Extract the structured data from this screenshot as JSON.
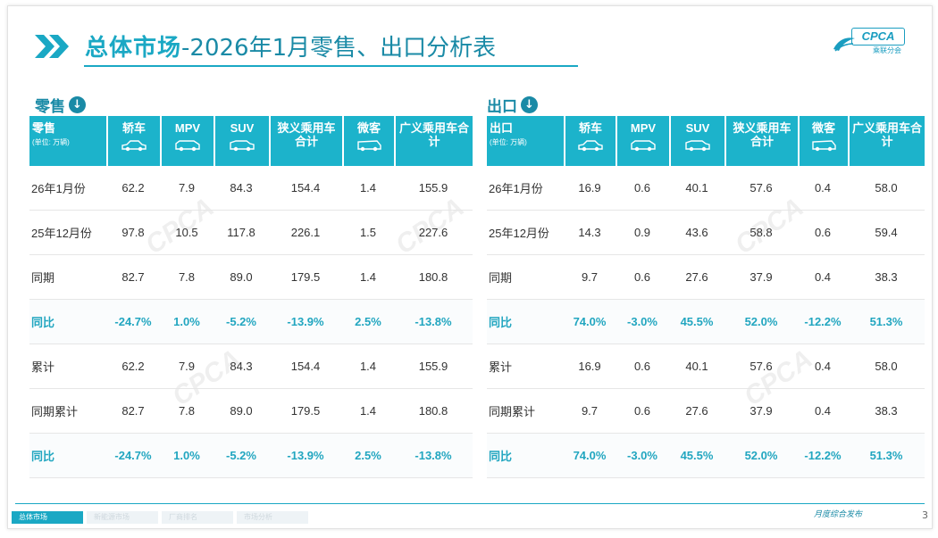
{
  "title": {
    "bold": "总体市场",
    "rest": "-2026年1月零售、出口分析表"
  },
  "logo": {
    "text": "CPCA",
    "sub": "乘联分会"
  },
  "retail": {
    "heading": "零售",
    "header": {
      "label": "零售",
      "unit": "(单位: 万辆)",
      "cols": [
        "轿车",
        "MPV",
        "SUV",
        "狭义乘用车合计",
        "微客",
        "广义乘用车合计"
      ]
    },
    "rows": [
      {
        "label": "26年1月份",
        "values": [
          "62.2",
          "7.9",
          "84.3",
          "154.4",
          "1.4",
          "155.9"
        ]
      },
      {
        "label": "25年12月份",
        "values": [
          "97.8",
          "10.5",
          "117.8",
          "226.1",
          "1.5",
          "227.6"
        ]
      },
      {
        "label": "同期",
        "values": [
          "82.7",
          "7.8",
          "89.0",
          "179.5",
          "1.4",
          "180.8"
        ]
      },
      {
        "label": "同比",
        "values": [
          "-24.7%",
          "1.0%",
          "-5.2%",
          "-13.9%",
          "2.5%",
          "-13.8%"
        ],
        "yoy": true
      },
      {
        "label": "累计",
        "values": [
          "62.2",
          "7.9",
          "84.3",
          "154.4",
          "1.4",
          "155.9"
        ]
      },
      {
        "label": "同期累计",
        "values": [
          "82.7",
          "7.8",
          "89.0",
          "179.5",
          "1.4",
          "180.8"
        ]
      },
      {
        "label": "同比",
        "values": [
          "-24.7%",
          "1.0%",
          "-5.2%",
          "-13.9%",
          "2.5%",
          "-13.8%"
        ],
        "yoy": true
      }
    ]
  },
  "export": {
    "heading": "出口",
    "header": {
      "label": "出口",
      "unit": "(单位: 万辆)",
      "cols": [
        "轿车",
        "MPV",
        "SUV",
        "狭义乘用车合计",
        "微客",
        "广义乘用车合计"
      ]
    },
    "rows": [
      {
        "label": "26年1月份",
        "values": [
          "16.9",
          "0.6",
          "40.1",
          "57.6",
          "0.4",
          "58.0"
        ]
      },
      {
        "label": "25年12月份",
        "values": [
          "14.3",
          "0.9",
          "43.6",
          "58.8",
          "0.6",
          "59.4"
        ]
      },
      {
        "label": "同期",
        "values": [
          "9.7",
          "0.6",
          "27.6",
          "37.9",
          "0.4",
          "38.3"
        ]
      },
      {
        "label": "同比",
        "values": [
          "74.0%",
          "-3.0%",
          "45.5%",
          "52.0%",
          "-12.2%",
          "51.3%"
        ],
        "yoy": true
      },
      {
        "label": "累计",
        "values": [
          "16.9",
          "0.6",
          "40.1",
          "57.6",
          "0.4",
          "58.0"
        ]
      },
      {
        "label": "同期累计",
        "values": [
          "9.7",
          "0.6",
          "27.6",
          "37.9",
          "0.4",
          "38.3"
        ]
      },
      {
        "label": "同比",
        "values": [
          "74.0%",
          "-3.0%",
          "45.5%",
          "52.0%",
          "-12.2%",
          "51.3%"
        ],
        "yoy": true
      }
    ]
  },
  "footer": {
    "tag": "月度综合发布",
    "page": "3",
    "tabs": [
      {
        "label": "总体市场",
        "active": true
      },
      {
        "label": "新能源市场",
        "active": false
      },
      {
        "label": "厂商排名",
        "active": false
      },
      {
        "label": "市场分析",
        "active": false
      }
    ]
  },
  "colors": {
    "accent": "#1aa8c4",
    "header_bg": "#1cb3cb",
    "yoy_text": "#22a6c0"
  }
}
